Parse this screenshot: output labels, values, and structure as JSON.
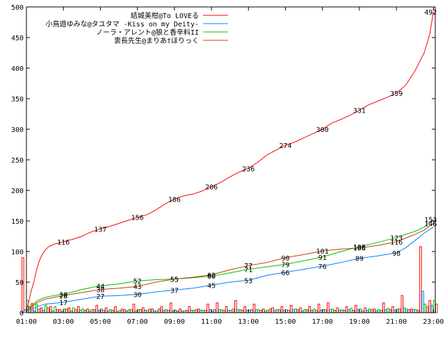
{
  "chart_data": {
    "type": "line",
    "xlabel": "",
    "ylabel": "",
    "x_ticks": [
      "01:00",
      "03:00",
      "05:00",
      "07:00",
      "09:00",
      "11:00",
      "13:00",
      "15:00",
      "17:00",
      "19:00",
      "21:00",
      "23:00"
    ],
    "y_ticks": [
      "0",
      "50",
      "100",
      "150",
      "200",
      "250",
      "300",
      "350",
      "400",
      "450",
      "500"
    ],
    "ylim": [
      0,
      500
    ],
    "xlim": [
      1,
      23.1
    ],
    "grid": false,
    "legend_position": "top-right",
    "series": [
      {
        "name": "結城美柑@To LOVEる",
        "color": "#ff0000",
        "points": [
          [
            1,
            5
          ],
          [
            1.1,
            15
          ],
          [
            1.25,
            35
          ],
          [
            1.4,
            50
          ],
          [
            1.55,
            70
          ],
          [
            1.7,
            85
          ],
          [
            1.85,
            95
          ],
          [
            2.0,
            102
          ],
          [
            2.2,
            108
          ],
          [
            2.5,
            112
          ],
          [
            3.0,
            116
          ],
          [
            3.5,
            120
          ],
          [
            4.0,
            125
          ],
          [
            4.5,
            132
          ],
          [
            5.0,
            137
          ],
          [
            5.5,
            141
          ],
          [
            6.0,
            146
          ],
          [
            6.5,
            151
          ],
          [
            7.0,
            156
          ],
          [
            7.5,
            160
          ],
          [
            8.0,
            168
          ],
          [
            8.5,
            178
          ],
          [
            9.0,
            186
          ],
          [
            9.5,
            191
          ],
          [
            10.0,
            194
          ],
          [
            10.5,
            199
          ],
          [
            11.0,
            206
          ],
          [
            11.5,
            213
          ],
          [
            12.0,
            222
          ],
          [
            12.5,
            230
          ],
          [
            13.0,
            236
          ],
          [
            13.5,
            246
          ],
          [
            14.0,
            258
          ],
          [
            14.5,
            266
          ],
          [
            15.0,
            274
          ],
          [
            15.5,
            279
          ],
          [
            16.0,
            286
          ],
          [
            16.5,
            293
          ],
          [
            17.0,
            300
          ],
          [
            17.5,
            310
          ],
          [
            18.0,
            316
          ],
          [
            18.5,
            323
          ],
          [
            19.0,
            331
          ],
          [
            19.5,
            340
          ],
          [
            20.0,
            346
          ],
          [
            20.5,
            352
          ],
          [
            21.0,
            359
          ],
          [
            21.5,
            372
          ],
          [
            22.0,
            395
          ],
          [
            22.5,
            425
          ],
          [
            22.8,
            455
          ],
          [
            23.0,
            492
          ]
        ],
        "labels": [
          [
            3.0,
            116,
            "116"
          ],
          [
            5.0,
            137,
            "137"
          ],
          [
            7.0,
            156,
            "156"
          ],
          [
            9.0,
            186,
            "186"
          ],
          [
            11.0,
            206,
            "206"
          ],
          [
            13.0,
            236,
            "236"
          ],
          [
            15.0,
            274,
            "274"
          ],
          [
            17.0,
            300,
            "300"
          ],
          [
            19.0,
            331,
            "331"
          ],
          [
            21.0,
            359,
            "359"
          ],
          [
            22.85,
            492,
            "492"
          ]
        ]
      },
      {
        "name": "小鳥遊ゆみな@タユタマ -Kiss on my Deity-",
        "color": "#0080ff",
        "points": [
          [
            1,
            2
          ],
          [
            1.3,
            6
          ],
          [
            1.6,
            10
          ],
          [
            2.0,
            14
          ],
          [
            3.0,
            17
          ],
          [
            4.0,
            22
          ],
          [
            5.0,
            27
          ],
          [
            6.0,
            28
          ],
          [
            7.0,
            30
          ],
          [
            8.0,
            34
          ],
          [
            9.0,
            37
          ],
          [
            10.0,
            40
          ],
          [
            11.0,
            45
          ],
          [
            12.0,
            50
          ],
          [
            13.0,
            53
          ],
          [
            14.0,
            61
          ],
          [
            15.0,
            66
          ],
          [
            16.0,
            71
          ],
          [
            17.0,
            76
          ],
          [
            18.0,
            82
          ],
          [
            19.0,
            89
          ],
          [
            20.0,
            93
          ],
          [
            21.0,
            98
          ],
          [
            21.5,
            106
          ],
          [
            22.0,
            118
          ],
          [
            22.5,
            130
          ],
          [
            23.0,
            140
          ]
        ],
        "labels": [
          [
            3.0,
            17,
            "17"
          ],
          [
            5.0,
            27,
            "27"
          ],
          [
            7.0,
            30,
            "30"
          ],
          [
            9.0,
            37,
            "37"
          ],
          [
            11.0,
            45,
            "45"
          ],
          [
            13.0,
            53,
            "53"
          ],
          [
            15.0,
            66,
            "66"
          ],
          [
            17.0,
            76,
            "76"
          ],
          [
            19.0,
            89,
            "89"
          ],
          [
            21.0,
            98,
            "98"
          ]
        ]
      },
      {
        "name": "ノーラ・アレント@狼と香辛料II",
        "color": "#00c000",
        "points": [
          [
            1,
            4
          ],
          [
            1.3,
            12
          ],
          [
            1.6,
            20
          ],
          [
            2.0,
            25
          ],
          [
            2.5,
            28
          ],
          [
            3.0,
            30
          ],
          [
            4.0,
            38
          ],
          [
            5.0,
            44
          ],
          [
            6.0,
            47
          ],
          [
            7.0,
            52
          ],
          [
            8.0,
            54
          ],
          [
            9.0,
            55
          ],
          [
            10.0,
            57
          ],
          [
            11.0,
            60
          ],
          [
            12.0,
            65
          ],
          [
            13.0,
            71
          ],
          [
            14.0,
            75
          ],
          [
            15.0,
            79
          ],
          [
            16.0,
            85
          ],
          [
            17.0,
            91
          ],
          [
            18.0,
            100
          ],
          [
            19.0,
            108
          ],
          [
            20.0,
            115
          ],
          [
            21.0,
            123
          ],
          [
            21.5,
            128
          ],
          [
            22.0,
            133
          ],
          [
            22.5,
            140
          ],
          [
            23.0,
            153
          ]
        ],
        "labels": [
          [
            3.0,
            30,
            "30"
          ],
          [
            5.0,
            44,
            "44"
          ],
          [
            7.0,
            52,
            "52"
          ],
          [
            9.0,
            55,
            "55"
          ],
          [
            11.0,
            60,
            "60"
          ],
          [
            13.0,
            71,
            "71"
          ],
          [
            15.0,
            79,
            "79"
          ],
          [
            17.0,
            91,
            "91"
          ],
          [
            19.0,
            108,
            "108"
          ],
          [
            21.0,
            123,
            "123"
          ],
          [
            22.85,
            153,
            "153"
          ]
        ]
      },
      {
        "name": "衷長先生@まりあ†ほりっく",
        "color": "#c04000",
        "points": [
          [
            1,
            3
          ],
          [
            1.3,
            10
          ],
          [
            1.6,
            17
          ],
          [
            2.0,
            22
          ],
          [
            2.5,
            25
          ],
          [
            3.0,
            28
          ],
          [
            4.0,
            33
          ],
          [
            5.0,
            38
          ],
          [
            6.0,
            40
          ],
          [
            7.0,
            43
          ],
          [
            8.0,
            50
          ],
          [
            9.0,
            55
          ],
          [
            10.0,
            58
          ],
          [
            11.0,
            62
          ],
          [
            12.0,
            70
          ],
          [
            13.0,
            77
          ],
          [
            14.0,
            82
          ],
          [
            15.0,
            90
          ],
          [
            16.0,
            95
          ],
          [
            17.0,
            101
          ],
          [
            18.0,
            104
          ],
          [
            19.0,
            106
          ],
          [
            20.0,
            110
          ],
          [
            21.0,
            116
          ],
          [
            21.5,
            122
          ],
          [
            22.0,
            128
          ],
          [
            22.5,
            135
          ],
          [
            23.0,
            146
          ]
        ],
        "labels": [
          [
            3.0,
            28,
            "28"
          ],
          [
            5.0,
            38,
            "38"
          ],
          [
            7.0,
            43,
            "43"
          ],
          [
            9.0,
            55,
            "55"
          ],
          [
            11.0,
            62,
            "62"
          ],
          [
            13.0,
            77,
            "77"
          ],
          [
            15.0,
            90,
            "90"
          ],
          [
            17.0,
            101,
            "101"
          ],
          [
            19.0,
            106,
            "106"
          ],
          [
            21.0,
            116,
            "116"
          ],
          [
            22.85,
            146,
            "146"
          ]
        ]
      }
    ],
    "bars": {
      "x": [
        1.0,
        1.5,
        2.0,
        2.5,
        3.0,
        3.5,
        4.0,
        4.5,
        5.0,
        5.5,
        6.0,
        6.5,
        7.0,
        7.5,
        8.0,
        8.5,
        9.0,
        9.5,
        10.0,
        10.5,
        11.0,
        11.5,
        12.0,
        12.5,
        13.0,
        13.5,
        14.0,
        14.5,
        15.0,
        15.5,
        16.0,
        16.5,
        17.0,
        17.5,
        18.0,
        18.5,
        19.0,
        19.5,
        20.0,
        20.5,
        21.0,
        21.5,
        22.0,
        22.5,
        23.0
      ],
      "series_values": [
        [
          90,
          15,
          8,
          10,
          5,
          8,
          10,
          6,
          12,
          8,
          10,
          5,
          14,
          8,
          6,
          10,
          16,
          6,
          10,
          6,
          14,
          16,
          10,
          20,
          10,
          14,
          6,
          8,
          10,
          12,
          8,
          10,
          14,
          16,
          8,
          10,
          12,
          8,
          6,
          16,
          10,
          28,
          6,
          108,
          20
        ],
        [
          5,
          3,
          4,
          3,
          2,
          3,
          4,
          3,
          4,
          3,
          2,
          3,
          3,
          4,
          3,
          4,
          3,
          3,
          4,
          4,
          5,
          5,
          4,
          5,
          4,
          5,
          3,
          4,
          4,
          5,
          3,
          4,
          4,
          5,
          4,
          5,
          5,
          4,
          3,
          5,
          4,
          8,
          5,
          35,
          12
        ],
        [
          20,
          14,
          12,
          10,
          6,
          8,
          6,
          5,
          6,
          5,
          4,
          5,
          5,
          4,
          3,
          5,
          4,
          3,
          4,
          4,
          3,
          5,
          4,
          5,
          4,
          5,
          4,
          5,
          5,
          6,
          5,
          6,
          5,
          6,
          5,
          7,
          6,
          6,
          5,
          7,
          6,
          6,
          5,
          14,
          20
        ],
        [
          10,
          6,
          8,
          5,
          6,
          5,
          4,
          5,
          4,
          4,
          6,
          5,
          5,
          6,
          6,
          4,
          3,
          4,
          5,
          4,
          5,
          4,
          6,
          4,
          5,
          4,
          6,
          5,
          4,
          5,
          5,
          4,
          5,
          4,
          4,
          4,
          3,
          5,
          4,
          5,
          6,
          5,
          4,
          10,
          14
        ]
      ]
    }
  }
}
